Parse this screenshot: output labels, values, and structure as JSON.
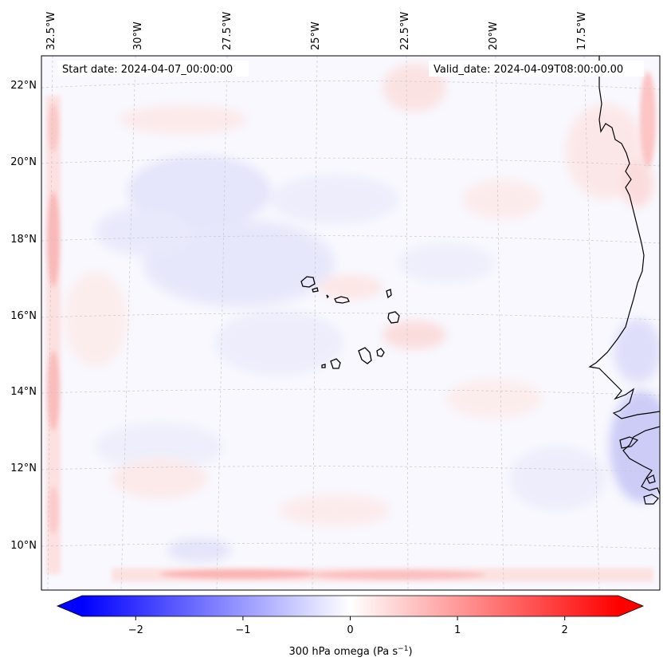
{
  "map": {
    "header": {
      "start_date": "Start date: 2024-04-07_00:00:00",
      "valid_date": "Valid_date: 2024-04-09T08:00:00.00"
    },
    "longitude_labels": [
      "32.5°W",
      "30°W",
      "27.5°W",
      "25°W",
      "22.5°W",
      "20°W",
      "17.5°W"
    ],
    "latitude_labels": [
      "22°N",
      "20°N",
      "18°N",
      "16°N",
      "14°N",
      "12°N",
      "10°N"
    ],
    "colorbar": {
      "ticks": [
        "−2",
        "−1",
        "0",
        "1",
        "2"
      ],
      "tick_values": [
        -2,
        -1,
        0,
        1,
        2
      ],
      "range": [
        -2.5,
        2.5
      ],
      "label_main": "300 hPa omega (Pa s",
      "label_exp": "−1",
      "label_close": ")",
      "colormap": "bwr"
    },
    "colors": {
      "negative": "#0000ff",
      "zero": "#ffffff",
      "positive": "#ff0000",
      "coastline": "#000000",
      "gridline": "#bbbbbb"
    }
  }
}
